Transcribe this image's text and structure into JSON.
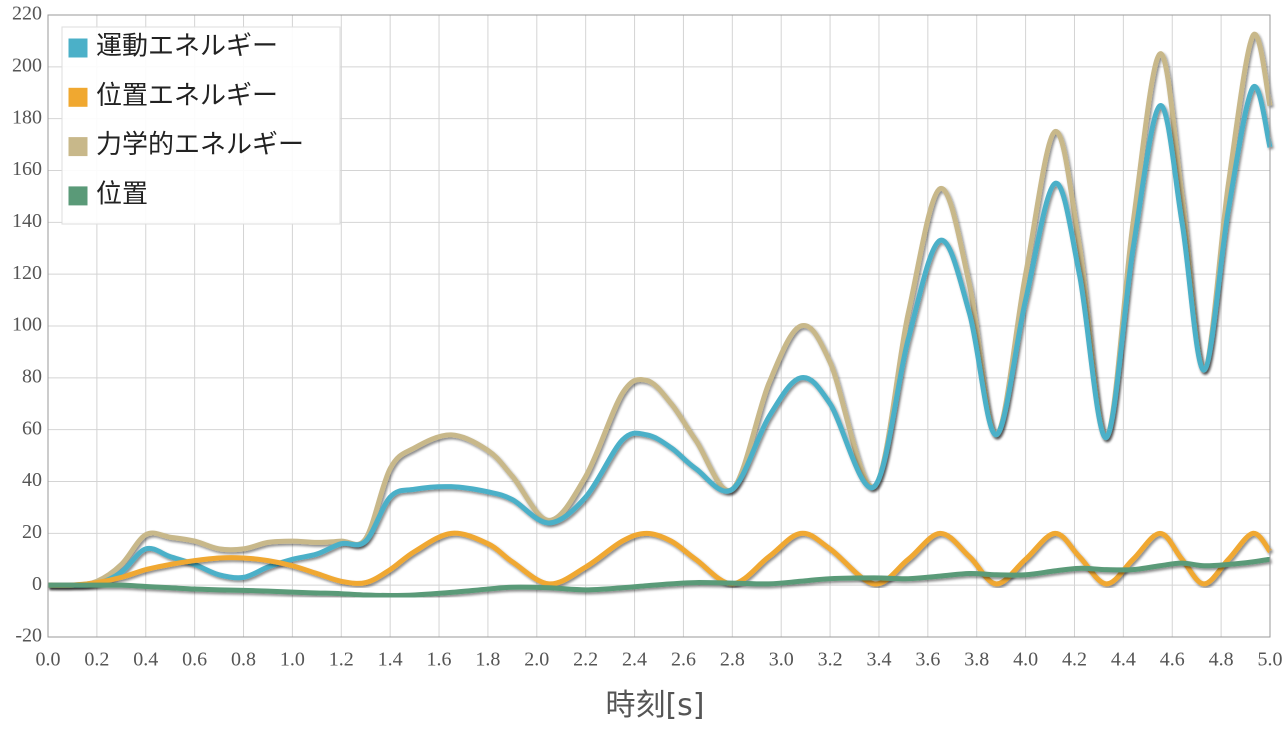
{
  "chart_data": {
    "type": "line",
    "xlabel": "時刻[s]",
    "x": [
      0,
      0.1,
      0.2,
      0.3,
      0.4,
      0.5,
      0.6,
      0.7,
      0.8,
      0.9,
      1.0,
      1.1,
      1.2,
      1.3,
      1.4,
      1.5,
      1.65,
      1.8,
      1.9,
      2.05,
      2.2,
      2.35,
      2.45,
      2.55,
      2.65,
      2.8,
      2.95,
      3.08,
      3.2,
      3.38,
      3.52,
      3.65,
      3.77,
      3.88,
      4.0,
      4.12,
      4.22,
      4.33,
      4.44,
      4.55,
      4.64,
      4.73,
      4.83,
      4.93,
      5.0
    ],
    "series": [
      {
        "name": "運動エネルギー",
        "color": "#4bb0c8",
        "values": [
          0,
          0,
          0.5,
          5,
          14,
          11,
          8,
          4,
          3,
          7,
          10,
          12,
          16,
          17,
          34,
          37,
          38,
          36,
          33,
          24,
          34,
          56,
          58,
          53,
          45,
          37,
          65,
          80,
          70,
          38,
          95,
          133,
          105,
          58,
          110,
          155,
          120,
          57,
          130,
          185,
          140,
          83,
          145,
          192,
          169
        ]
      },
      {
        "name": "位置エネルギー",
        "color": "#f0a830",
        "values": [
          0,
          0,
          1,
          3,
          6,
          8,
          9.5,
          10.5,
          10.5,
          9.5,
          7.5,
          4.5,
          1.5,
          1,
          6,
          13,
          20,
          16,
          9,
          0.5,
          7,
          17,
          20,
          17,
          10,
          0.5,
          11,
          20,
          14,
          0.5,
          10,
          20,
          11,
          0.5,
          10,
          20,
          11,
          0.5,
          10,
          20,
          10,
          0.5,
          10,
          20,
          13
        ]
      },
      {
        "name": "力学的エネルギー",
        "color": "#c8b88a",
        "values": [
          0,
          0,
          1.5,
          8,
          19.5,
          18.5,
          17,
          14,
          14,
          16.5,
          17,
          16.5,
          17,
          18,
          45,
          53,
          58,
          52,
          42,
          25,
          42,
          74,
          79,
          70,
          56,
          37,
          78,
          100,
          86,
          38,
          105,
          153,
          116,
          58,
          120,
          175,
          131,
          57,
          140,
          205,
          150,
          83,
          155,
          212,
          185
        ]
      },
      {
        "name": "位置",
        "color": "#5a9a78",
        "values": [
          0,
          0,
          0,
          0,
          -0.5,
          -1,
          -1.5,
          -1.8,
          -2,
          -2.3,
          -2.7,
          -3,
          -3.3,
          -3.8,
          -4,
          -3.8,
          -2.8,
          -1.5,
          -0.8,
          -1,
          -1.8,
          -1,
          -0.2,
          0.5,
          1,
          0.8,
          0.5,
          1.5,
          2.5,
          2.8,
          2.5,
          3.5,
          4.5,
          4,
          4,
          5.5,
          6.5,
          6,
          6,
          7.5,
          8.5,
          7.5,
          8,
          9,
          10
        ]
      }
    ],
    "xlim": [
      0,
      5
    ],
    "xticks": [
      {
        "value": 0,
        "label": "0.0"
      },
      0.2,
      0.4,
      0.6,
      0.8,
      {
        "value": 1,
        "label": "1.0"
      },
      1.2,
      1.4,
      1.6,
      1.8,
      {
        "value": 2,
        "label": "2.0"
      },
      2.2,
      2.4,
      2.6,
      2.8,
      {
        "value": 3,
        "label": "3.0"
      },
      3.2,
      3.4,
      3.6,
      3.8,
      {
        "value": 4,
        "label": "4.0"
      },
      4.2,
      4.4,
      4.6,
      4.8,
      {
        "value": 5,
        "label": "5.0"
      }
    ],
    "ylim": [
      -20,
      220
    ],
    "yticks": [
      -20,
      0,
      20,
      40,
      60,
      80,
      100,
      120,
      140,
      160,
      180,
      200,
      220
    ],
    "grid": true,
    "legend": "upper left"
  }
}
